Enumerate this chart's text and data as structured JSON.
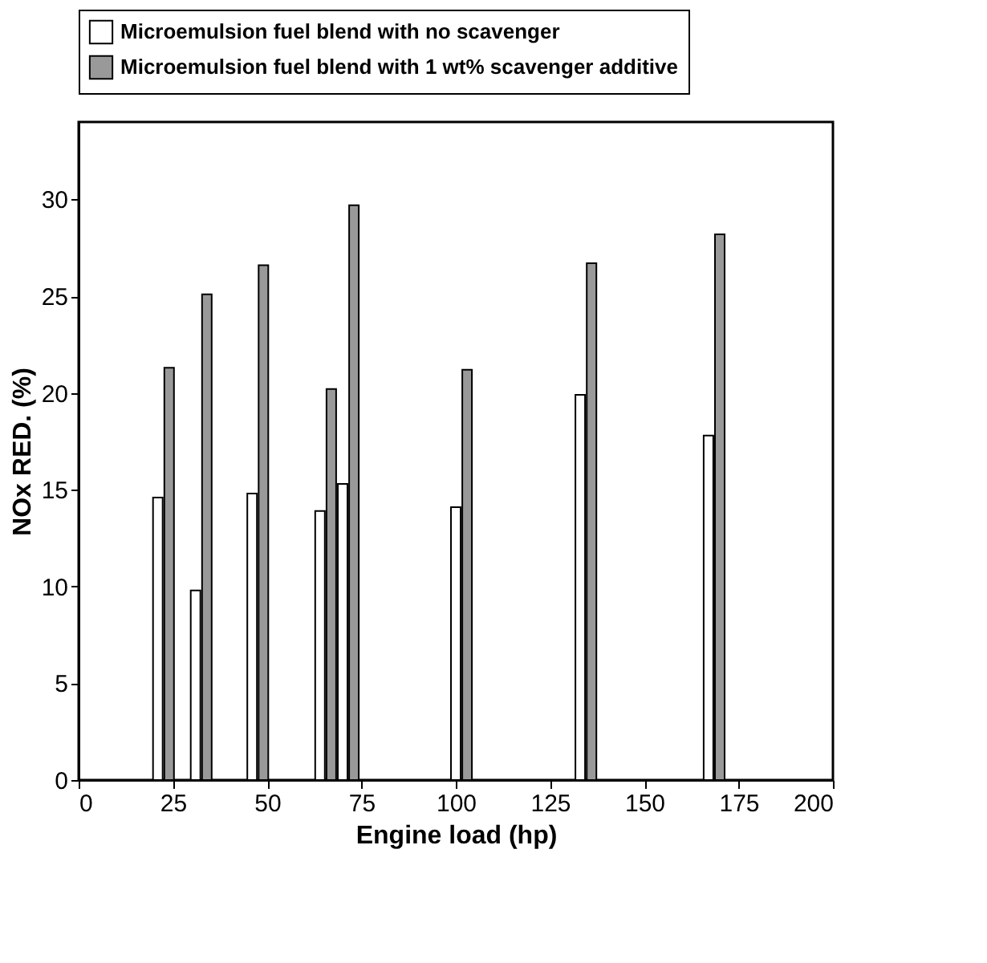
{
  "chart_data": {
    "type": "bar",
    "xlabel": "Engine load (hp)",
    "ylabel": "NOx RED. (%)",
    "xlim": [
      0,
      200
    ],
    "xticks": [
      0,
      25,
      50,
      75,
      100,
      125,
      150,
      175,
      200
    ],
    "ylim": [
      0,
      34
    ],
    "yticks": [
      0,
      5,
      10,
      15,
      20,
      25,
      30
    ],
    "legend": "top",
    "grid": false,
    "series": [
      {
        "name": "Microemulsion fuel blend with no scavenger",
        "color": "#ffffff",
        "x": [
          21,
          31,
          46,
          64,
          70,
          100,
          133,
          167
        ],
        "values": [
          14.6,
          9.8,
          14.8,
          13.9,
          15.3,
          14.1,
          19.9,
          17.8
        ]
      },
      {
        "name": "Microemulsion fuel blend with 1 wt% scavenger additive",
        "color": "#999999",
        "x": [
          24,
          34,
          49,
          67,
          73,
          103,
          136,
          170
        ],
        "values": [
          21.3,
          25.1,
          26.6,
          20.2,
          29.7,
          21.2,
          26.7,
          28.2
        ]
      }
    ]
  }
}
